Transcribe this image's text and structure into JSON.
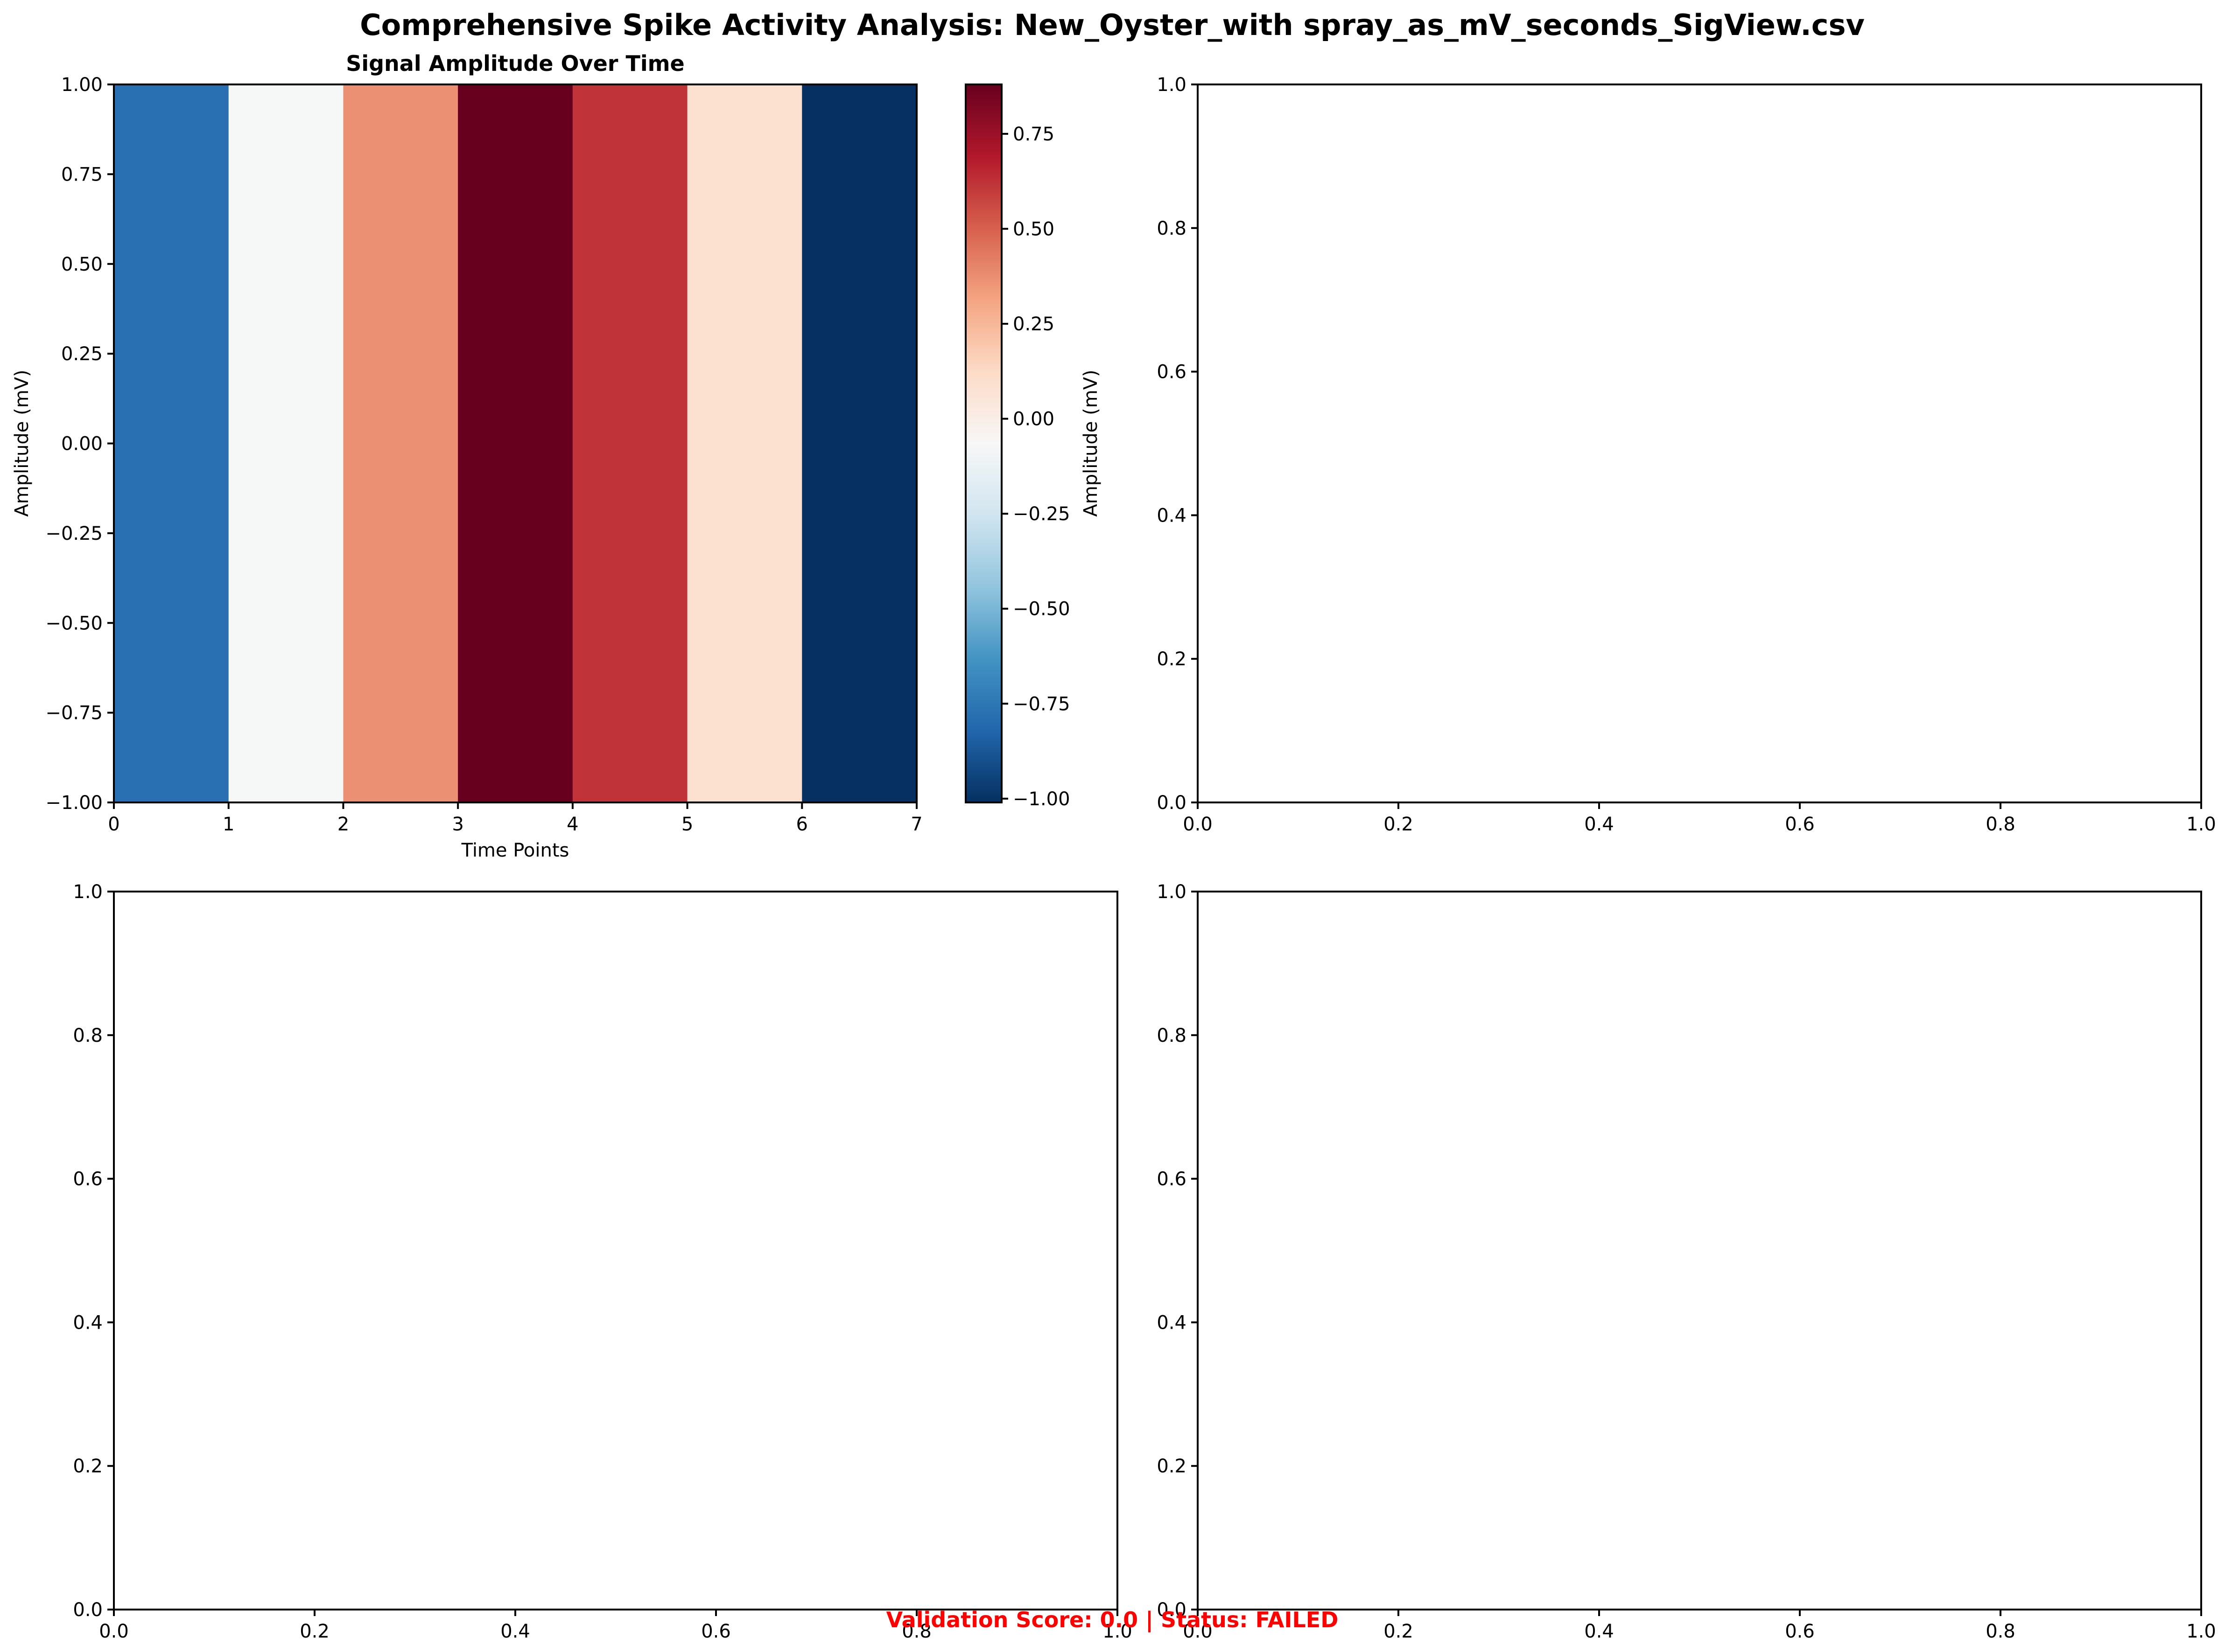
{
  "figure": {
    "title": "Comprehensive Spike Activity Analysis: New_Oyster_with spray_as_mV_seconds_SigView.csv",
    "footer": "Validation Score: 0.0 | Status: FAILED",
    "footer_color": "#ff0000"
  },
  "chart_data": [
    {
      "type": "heatmap",
      "title": "Signal Amplitude Over Time",
      "xlabel": "Time Points",
      "ylabel": "Amplitude (mV)",
      "xlim": [
        0,
        7
      ],
      "ylim": [
        -1.0,
        1.0
      ],
      "x_ticks": [
        "0",
        "1",
        "2",
        "3",
        "4",
        "5",
        "6",
        "7"
      ],
      "y_ticks": [
        "−1.00",
        "−0.75",
        "−0.50",
        "−0.25",
        "0.00",
        "0.25",
        "0.50",
        "0.75",
        "1.00"
      ],
      "values": [
        -0.78,
        -0.07,
        0.37,
        0.88,
        0.62,
        0.09,
        -1.01
      ],
      "colormap": "RdBu_r",
      "colorbar": {
        "label": "Amplitude (mV)",
        "range": [
          -1.01,
          0.88
        ],
        "ticks": [
          "−1.00",
          "−0.75",
          "−0.50",
          "−0.25",
          "0.00",
          "0.25",
          "0.50",
          "0.75"
        ]
      }
    },
    {
      "type": "scatter",
      "title": "",
      "xlim": [
        0,
        1
      ],
      "ylim": [
        0,
        1
      ],
      "x_ticks": [
        "0.0",
        "0.2",
        "0.4",
        "0.6",
        "0.8",
        "1.0"
      ],
      "y_ticks": [
        "0.0",
        "0.2",
        "0.4",
        "0.6",
        "0.8",
        "1.0"
      ],
      "values": []
    },
    {
      "type": "scatter",
      "title": "",
      "xlim": [
        0,
        1
      ],
      "ylim": [
        0,
        1
      ],
      "x_ticks": [
        "0.0",
        "0.2",
        "0.4",
        "0.6",
        "0.8",
        "1.0"
      ],
      "y_ticks": [
        "0.0",
        "0.2",
        "0.4",
        "0.6",
        "0.8",
        "1.0"
      ],
      "values": []
    },
    {
      "type": "scatter",
      "title": "",
      "xlim": [
        0,
        1
      ],
      "ylim": [
        0,
        1
      ],
      "x_ticks": [
        "0.0",
        "0.2",
        "0.4",
        "0.6",
        "0.8",
        "1.0"
      ],
      "y_ticks": [
        "0.0",
        "0.2",
        "0.4",
        "0.6",
        "0.8",
        "1.0"
      ],
      "values": []
    }
  ]
}
